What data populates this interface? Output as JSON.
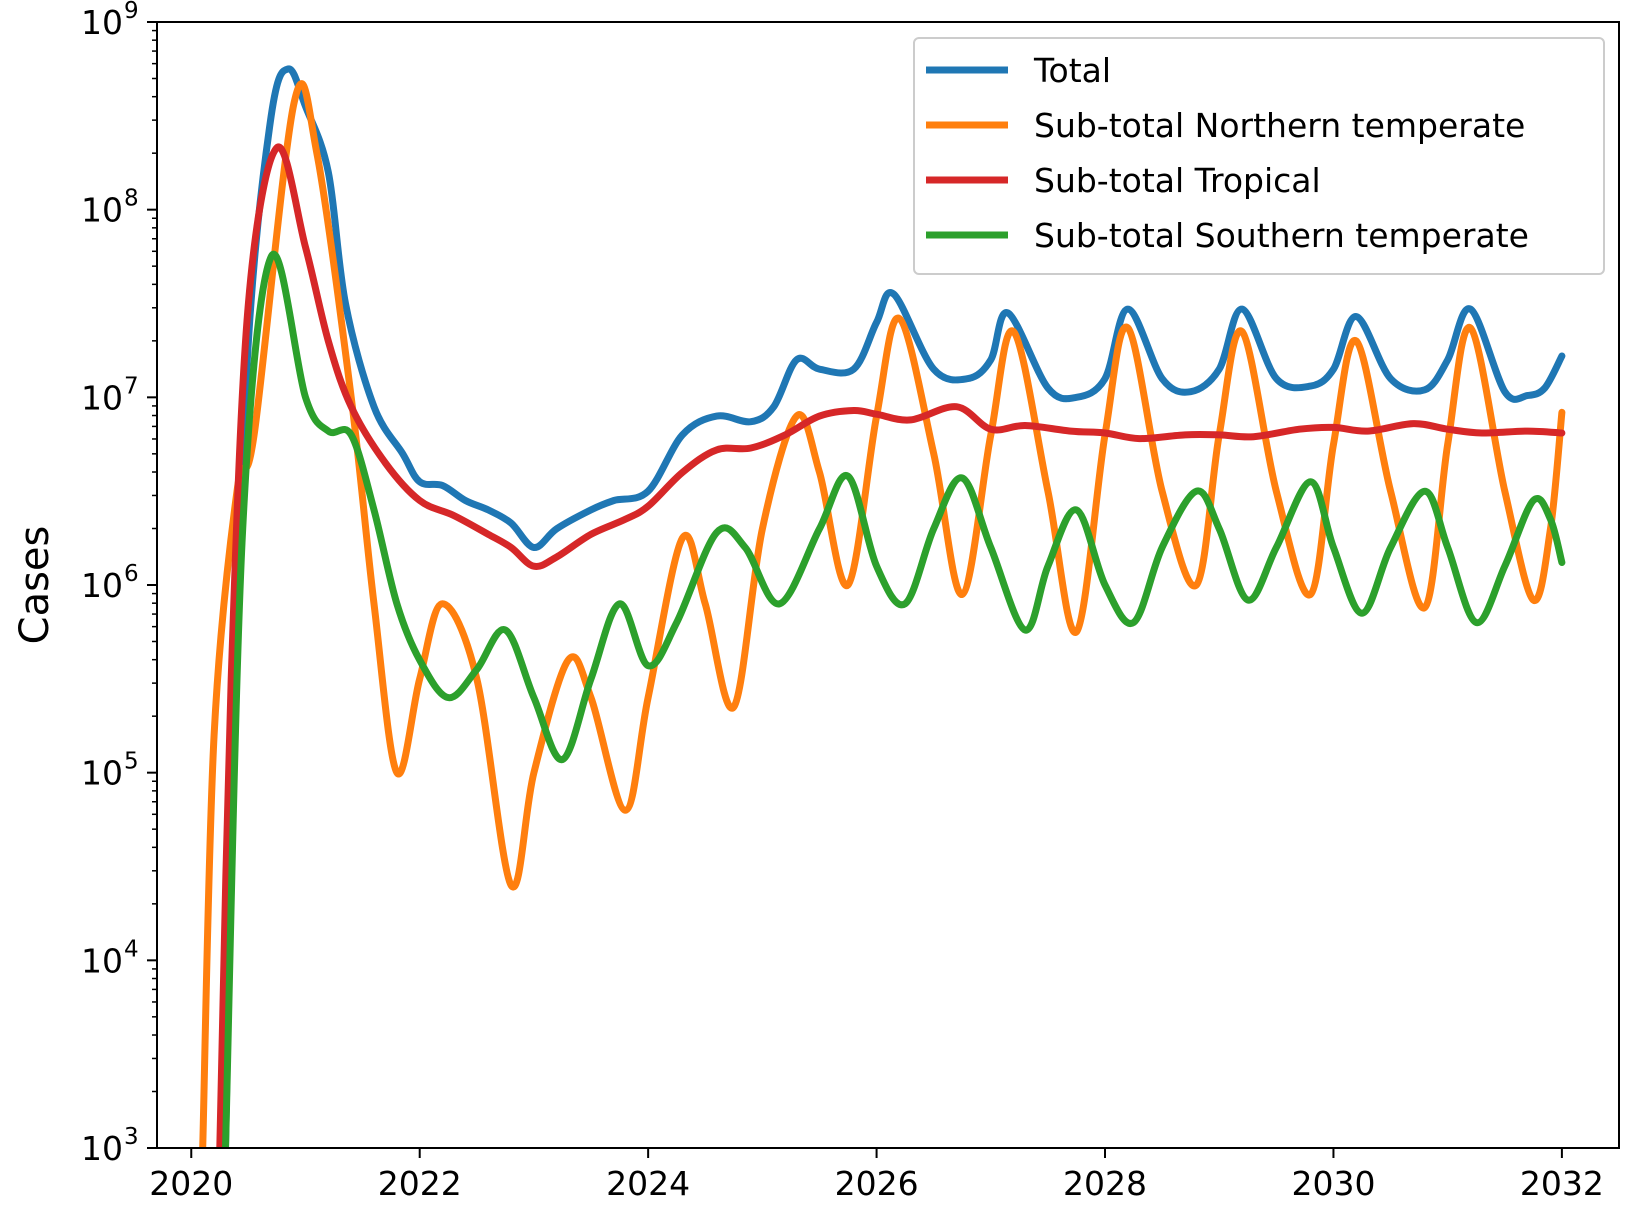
{
  "chart_data": {
    "type": "line",
    "title": "",
    "xlabel": "",
    "ylabel": "Cases",
    "yscale": "log",
    "xlim": [
      2019.7,
      2032.5
    ],
    "ylim_exp": [
      3,
      9
    ],
    "x_ticks": [
      "2020",
      "2022",
      "2024",
      "2026",
      "2028",
      "2030",
      "2032"
    ],
    "y_ticks": [
      {
        "base": "10",
        "exp": "3"
      },
      {
        "base": "10",
        "exp": "4"
      },
      {
        "base": "10",
        "exp": "5"
      },
      {
        "base": "10",
        "exp": "6"
      },
      {
        "base": "10",
        "exp": "7"
      },
      {
        "base": "10",
        "exp": "8"
      },
      {
        "base": "10",
        "exp": "9"
      }
    ],
    "grid": false,
    "legend_position": "top-right",
    "series": [
      {
        "name": "Total",
        "color": "#1f77b4",
        "points": [
          [
            2020.3,
            3.0
          ],
          [
            2020.38,
            5.3
          ],
          [
            2020.5,
            7.3
          ],
          [
            2020.7,
            8.5
          ],
          [
            2020.85,
            8.75
          ],
          [
            2021.0,
            8.55
          ],
          [
            2021.2,
            8.2
          ],
          [
            2021.35,
            7.5
          ],
          [
            2021.6,
            6.95
          ],
          [
            2021.85,
            6.7
          ],
          [
            2022.0,
            6.55
          ],
          [
            2022.2,
            6.53
          ],
          [
            2022.4,
            6.45
          ],
          [
            2022.6,
            6.4
          ],
          [
            2022.8,
            6.33
          ],
          [
            2023.0,
            6.2
          ],
          [
            2023.2,
            6.3
          ],
          [
            2023.5,
            6.4
          ],
          [
            2023.7,
            6.45
          ],
          [
            2024.0,
            6.5
          ],
          [
            2024.3,
            6.8
          ],
          [
            2024.6,
            6.9
          ],
          [
            2024.9,
            6.87
          ],
          [
            2025.1,
            6.95
          ],
          [
            2025.3,
            7.2
          ],
          [
            2025.5,
            7.15
          ],
          [
            2025.8,
            7.15
          ],
          [
            2026.0,
            7.4
          ],
          [
            2026.15,
            7.55
          ],
          [
            2026.5,
            7.15
          ],
          [
            2026.8,
            7.1
          ],
          [
            2027.0,
            7.2
          ],
          [
            2027.15,
            7.45
          ],
          [
            2027.5,
            7.05
          ],
          [
            2027.75,
            7.0
          ],
          [
            2028.0,
            7.1
          ],
          [
            2028.2,
            7.47
          ],
          [
            2028.5,
            7.1
          ],
          [
            2028.75,
            7.03
          ],
          [
            2029.0,
            7.15
          ],
          [
            2029.2,
            7.47
          ],
          [
            2029.5,
            7.1
          ],
          [
            2029.8,
            7.06
          ],
          [
            2030.0,
            7.15
          ],
          [
            2030.2,
            7.43
          ],
          [
            2030.5,
            7.1
          ],
          [
            2030.8,
            7.04
          ],
          [
            2031.0,
            7.2
          ],
          [
            2031.2,
            7.47
          ],
          [
            2031.5,
            7.03
          ],
          [
            2031.7,
            7.01
          ],
          [
            2031.85,
            7.05
          ],
          [
            2032.0,
            7.22
          ]
        ]
      },
      {
        "name": "Sub-total Northern temperate",
        "color": "#ff7f0e",
        "points": [
          [
            2020.1,
            3.0
          ],
          [
            2020.2,
            5.2
          ],
          [
            2020.4,
            6.5
          ],
          [
            2020.55,
            6.8
          ],
          [
            2020.9,
            8.57
          ],
          [
            2021.1,
            8.3
          ],
          [
            2021.4,
            7.0
          ],
          [
            2021.6,
            5.9
          ],
          [
            2021.8,
            5.0
          ],
          [
            2022.0,
            5.5
          ],
          [
            2022.2,
            5.9
          ],
          [
            2022.5,
            5.5
          ],
          [
            2022.8,
            4.4
          ],
          [
            2023.0,
            5.0
          ],
          [
            2023.3,
            5.6
          ],
          [
            2023.5,
            5.4
          ],
          [
            2023.8,
            4.8
          ],
          [
            2024.0,
            5.4
          ],
          [
            2024.3,
            6.25
          ],
          [
            2024.5,
            5.9
          ],
          [
            2024.75,
            5.35
          ],
          [
            2025.0,
            6.3
          ],
          [
            2025.3,
            6.9
          ],
          [
            2025.5,
            6.6
          ],
          [
            2025.75,
            6.0
          ],
          [
            2026.0,
            6.9
          ],
          [
            2026.2,
            7.42
          ],
          [
            2026.5,
            6.7
          ],
          [
            2026.75,
            5.95
          ],
          [
            2027.0,
            6.8
          ],
          [
            2027.2,
            7.35
          ],
          [
            2027.5,
            6.5
          ],
          [
            2027.75,
            5.75
          ],
          [
            2028.0,
            6.8
          ],
          [
            2028.2,
            7.37
          ],
          [
            2028.5,
            6.5
          ],
          [
            2028.8,
            6.0
          ],
          [
            2029.0,
            6.8
          ],
          [
            2029.2,
            7.35
          ],
          [
            2029.5,
            6.5
          ],
          [
            2029.8,
            5.95
          ],
          [
            2030.0,
            6.75
          ],
          [
            2030.2,
            7.3
          ],
          [
            2030.5,
            6.5
          ],
          [
            2030.8,
            5.88
          ],
          [
            2031.0,
            6.75
          ],
          [
            2031.2,
            7.37
          ],
          [
            2031.5,
            6.5
          ],
          [
            2031.75,
            5.92
          ],
          [
            2031.9,
            6.3
          ],
          [
            2032.0,
            6.92
          ]
        ]
      },
      {
        "name": "Sub-total Tropical",
        "color": "#d62728",
        "points": [
          [
            2020.25,
            3.0
          ],
          [
            2020.35,
            5.5
          ],
          [
            2020.5,
            7.5
          ],
          [
            2020.75,
            8.33
          ],
          [
            2021.0,
            7.8
          ],
          [
            2021.2,
            7.3
          ],
          [
            2021.4,
            6.95
          ],
          [
            2021.7,
            6.65
          ],
          [
            2022.0,
            6.45
          ],
          [
            2022.3,
            6.37
          ],
          [
            2022.6,
            6.27
          ],
          [
            2022.8,
            6.2
          ],
          [
            2023.0,
            6.1
          ],
          [
            2023.2,
            6.15
          ],
          [
            2023.5,
            6.27
          ],
          [
            2023.8,
            6.35
          ],
          [
            2024.0,
            6.42
          ],
          [
            2024.3,
            6.6
          ],
          [
            2024.6,
            6.72
          ],
          [
            2024.9,
            6.73
          ],
          [
            2025.2,
            6.8
          ],
          [
            2025.5,
            6.9
          ],
          [
            2025.8,
            6.93
          ],
          [
            2026.0,
            6.91
          ],
          [
            2026.3,
            6.88
          ],
          [
            2026.7,
            6.95
          ],
          [
            2027.0,
            6.83
          ],
          [
            2027.3,
            6.85
          ],
          [
            2027.7,
            6.82
          ],
          [
            2028.0,
            6.81
          ],
          [
            2028.3,
            6.78
          ],
          [
            2028.7,
            6.8
          ],
          [
            2029.0,
            6.8
          ],
          [
            2029.3,
            6.79
          ],
          [
            2029.7,
            6.83
          ],
          [
            2030.0,
            6.84
          ],
          [
            2030.3,
            6.82
          ],
          [
            2030.7,
            6.86
          ],
          [
            2031.0,
            6.83
          ],
          [
            2031.3,
            6.81
          ],
          [
            2031.7,
            6.82
          ],
          [
            2032.0,
            6.81
          ]
        ]
      },
      {
        "name": "Sub-total Southern temperate",
        "color": "#2ca02c",
        "points": [
          [
            2020.3,
            3.0
          ],
          [
            2020.45,
            6.3
          ],
          [
            2020.7,
            7.75
          ],
          [
            2021.0,
            7.0
          ],
          [
            2021.2,
            6.82
          ],
          [
            2021.4,
            6.8
          ],
          [
            2021.6,
            6.4
          ],
          [
            2021.8,
            5.9
          ],
          [
            2022.0,
            5.6
          ],
          [
            2022.25,
            5.4
          ],
          [
            2022.5,
            5.55
          ],
          [
            2022.75,
            5.76
          ],
          [
            2023.0,
            5.4
          ],
          [
            2023.25,
            5.07
          ],
          [
            2023.5,
            5.5
          ],
          [
            2023.75,
            5.9
          ],
          [
            2024.0,
            5.57
          ],
          [
            2024.25,
            5.8
          ],
          [
            2024.6,
            6.28
          ],
          [
            2024.85,
            6.2
          ],
          [
            2025.15,
            5.9
          ],
          [
            2025.5,
            6.3
          ],
          [
            2025.75,
            6.58
          ],
          [
            2026.0,
            6.1
          ],
          [
            2026.25,
            5.9
          ],
          [
            2026.5,
            6.3
          ],
          [
            2026.75,
            6.57
          ],
          [
            2027.0,
            6.2
          ],
          [
            2027.3,
            5.76
          ],
          [
            2027.5,
            6.1
          ],
          [
            2027.75,
            6.4
          ],
          [
            2028.0,
            6.0
          ],
          [
            2028.25,
            5.8
          ],
          [
            2028.5,
            6.2
          ],
          [
            2028.8,
            6.5
          ],
          [
            2029.0,
            6.3
          ],
          [
            2029.25,
            5.92
          ],
          [
            2029.5,
            6.2
          ],
          [
            2029.8,
            6.55
          ],
          [
            2030.0,
            6.2
          ],
          [
            2030.25,
            5.85
          ],
          [
            2030.5,
            6.2
          ],
          [
            2030.8,
            6.5
          ],
          [
            2031.0,
            6.2
          ],
          [
            2031.25,
            5.8
          ],
          [
            2031.5,
            6.1
          ],
          [
            2031.75,
            6.45
          ],
          [
            2031.9,
            6.35
          ],
          [
            2032.0,
            6.12
          ]
        ]
      }
    ]
  }
}
